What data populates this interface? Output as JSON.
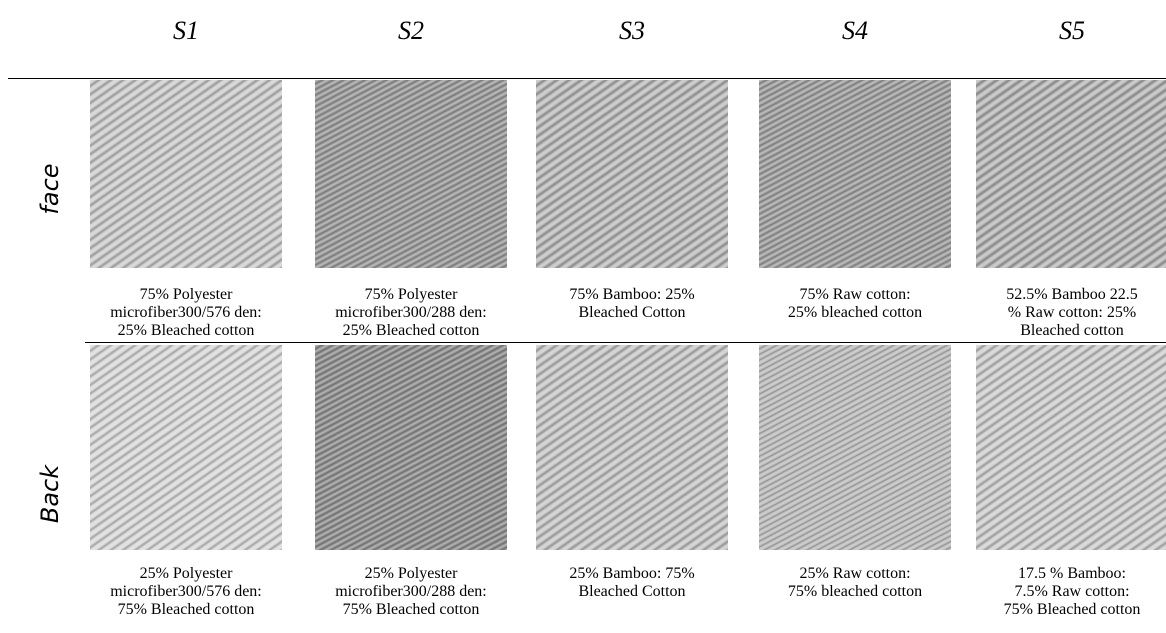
{
  "header": {
    "columns": [
      "S1",
      "S2",
      "S3",
      "S4",
      "S5"
    ]
  },
  "rows": [
    {
      "label": "face",
      "captions": [
        [
          "75% Polyester",
          "microfiber300/576 den:",
          "25% Bleached cotton"
        ],
        [
          "75% Polyester",
          "microfiber300/288 den:",
          "25% Bleached cotton"
        ],
        [
          "75% Bamboo: 25%",
          "Bleached Cotton"
        ],
        [
          "75% Raw cotton:",
          "25% bleached cotton"
        ],
        [
          "52.5% Bamboo 22.5",
          "% Raw cotton: 25%",
          "Bleached cotton"
        ]
      ]
    },
    {
      "label": "Back",
      "captions": [
        [
          "25% Polyester",
          "microfiber300/576 den:",
          "75% Bleached cotton"
        ],
        [
          "25% Polyester",
          "microfiber300/288 den:",
          "75% Bleached cotton"
        ],
        [
          "25% Bamboo: 75%",
          "Bleached Cotton"
        ],
        [
          "25% Raw cotton:",
          "75% bleached cotton"
        ],
        [
          "17.5 % Bamboo:",
          "7.5% Raw cotton:",
          "75% Bleached cotton"
        ]
      ]
    }
  ]
}
